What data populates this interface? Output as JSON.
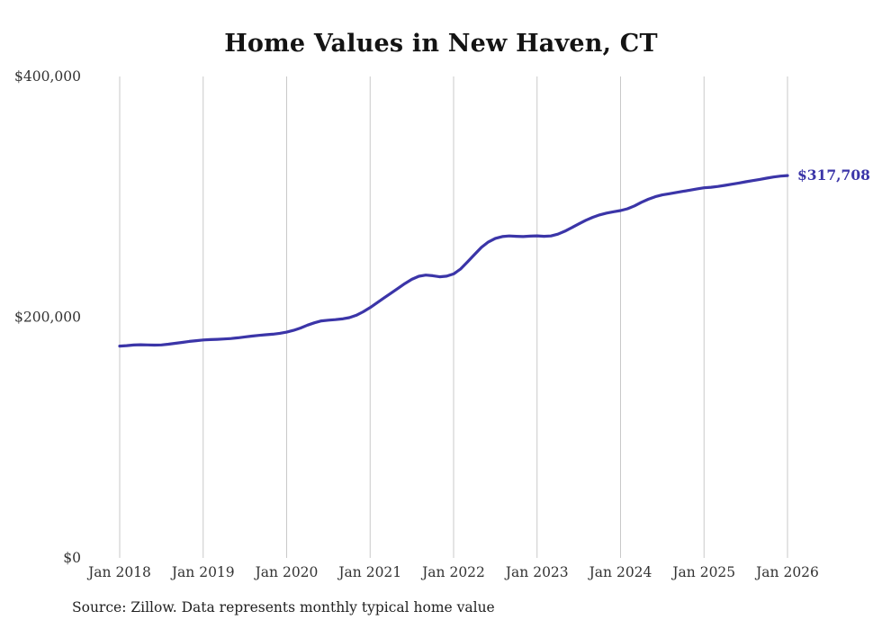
{
  "title": "Home Values in New Haven, CT",
  "source_note": "Source: Zillow. Data represents monthly typical home value",
  "end_label": "$317,708",
  "chart_data": {
    "type": "line",
    "title": "Home Values in New Haven, CT",
    "grid": "vertical",
    "legend": "none",
    "ylim": [
      0,
      400000
    ],
    "y_ticks": [
      {
        "value": 0,
        "label": "$0"
      },
      {
        "value": 200000,
        "label": "$200,000"
      },
      {
        "value": 400000,
        "label": "$400,000"
      }
    ],
    "x_tick_labels": [
      "Jan 2018",
      "Jan 2019",
      "Jan 2020",
      "Jan 2021",
      "Jan 2022",
      "Jan 2023",
      "Jan 2024",
      "Jan 2025",
      "Jan 2026"
    ],
    "x_start": "Jan 2018",
    "x_interval": "monthly",
    "final_value": 317708,
    "line_color": "#3b35a8",
    "gridline_color": "#c9c9c9",
    "series": [
      {
        "name": "Typical home value",
        "color": "#3b35a8",
        "values": [
          176000,
          176400,
          176900,
          177100,
          177000,
          176800,
          177000,
          177600,
          178300,
          179100,
          179900,
          180500,
          181100,
          181400,
          181600,
          181900,
          182300,
          182900,
          183600,
          184300,
          184900,
          185400,
          185900,
          186600,
          187600,
          189100,
          191000,
          193400,
          195400,
          196900,
          197500,
          198000,
          198600,
          199600,
          201600,
          204500,
          208000,
          212000,
          216000,
          220000,
          224000,
          228000,
          231500,
          234000,
          235000,
          234500,
          233600,
          234100,
          236000,
          240000,
          246000,
          252000,
          258000,
          262500,
          265500,
          267000,
          267500,
          267200,
          267000,
          267400,
          267600,
          267200,
          267500,
          269000,
          271500,
          274500,
          277500,
          280500,
          283000,
          285000,
          286500,
          287600,
          288600,
          290100,
          292500,
          295500,
          298000,
          300100,
          301600,
          302600,
          303600,
          304600,
          305600,
          306600,
          307500,
          308000,
          308600,
          309500,
          310500,
          311500,
          312500,
          313500,
          314500,
          315500,
          316500,
          317200,
          317708
        ]
      }
    ]
  }
}
